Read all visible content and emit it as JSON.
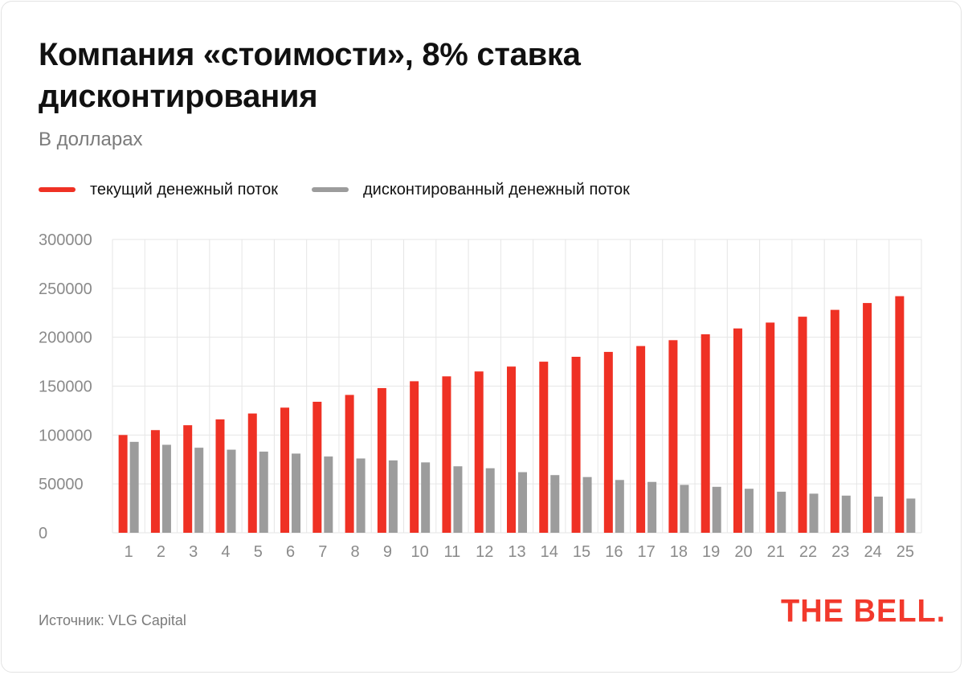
{
  "header": {
    "title": "Компания «стоимости», 8% ставка дисконтирования",
    "subtitle": "В долларах"
  },
  "footer": {
    "source": "Источник: VLG Capital",
    "logo": "THE BELL."
  },
  "colors": {
    "current": "#ef3124",
    "discounted": "#9c9c9c",
    "grid": "#e6e6e6",
    "tick": "#8a8a8a"
  },
  "chart_data": {
    "type": "bar",
    "categories": [
      "1",
      "2",
      "3",
      "4",
      "5",
      "6",
      "7",
      "8",
      "9",
      "10",
      "11",
      "12",
      "13",
      "14",
      "15",
      "16",
      "17",
      "18",
      "19",
      "20",
      "21",
      "22",
      "23",
      "24",
      "25"
    ],
    "series": [
      {
        "name": "текущий денежный поток",
        "values": [
          100000,
          105000,
          110000,
          116000,
          122000,
          128000,
          134000,
          141000,
          148000,
          155000,
          160000,
          165000,
          170000,
          175000,
          180000,
          185000,
          191000,
          197000,
          203000,
          209000,
          215000,
          221000,
          228000,
          235000,
          242000
        ]
      },
      {
        "name": "дисконтированный денежный поток",
        "values": [
          93000,
          90000,
          87000,
          85000,
          83000,
          81000,
          78000,
          76000,
          74000,
          72000,
          68000,
          66000,
          62000,
          59000,
          57000,
          54000,
          52000,
          49000,
          47000,
          45000,
          42000,
          40000,
          38000,
          37000,
          35000
        ]
      }
    ],
    "y_ticks": [
      "300000",
      "250000",
      "200000",
      "150000",
      "100000",
      "50000",
      "0"
    ],
    "ylim": [
      0,
      300000
    ],
    "grid": true,
    "legend": "top-left"
  }
}
